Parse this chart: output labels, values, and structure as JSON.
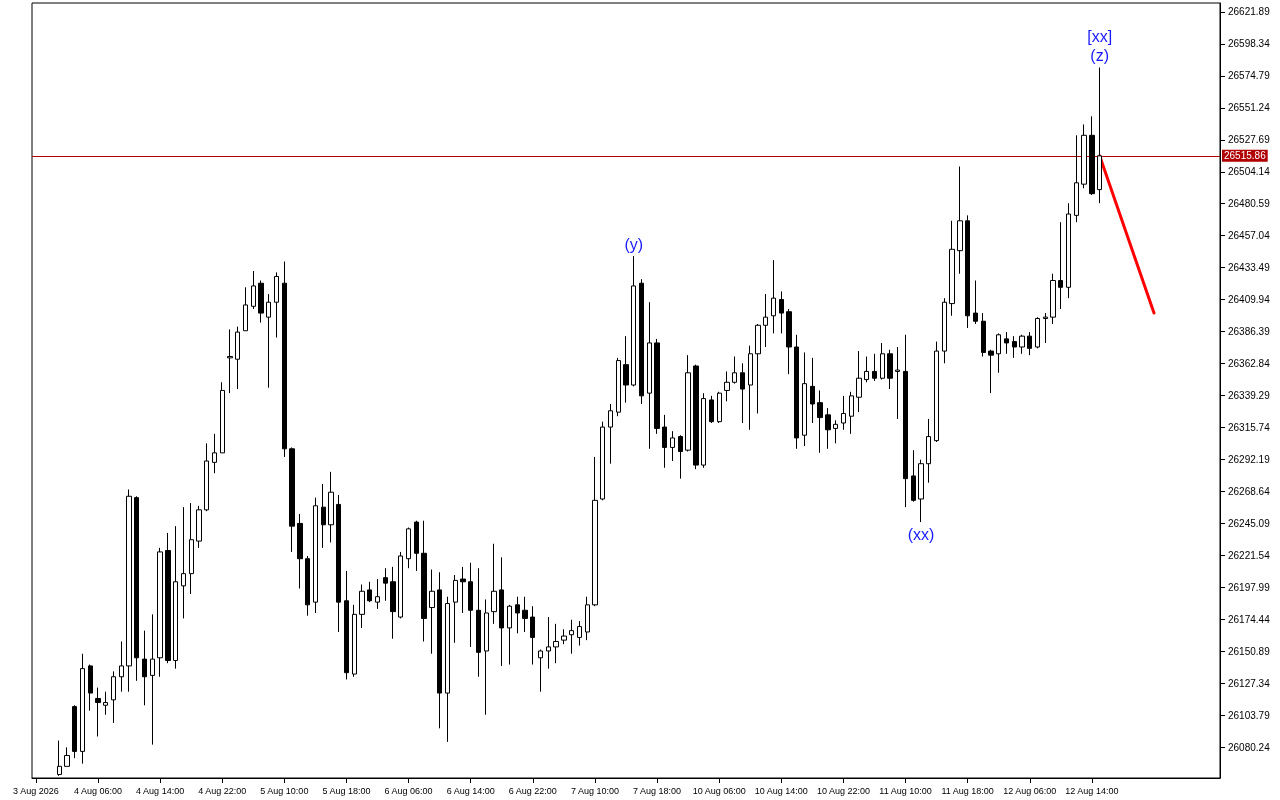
{
  "chart_data": {
    "type": "candlestick",
    "categories": [
      "3 Aug 2026",
      null,
      null,
      null,
      null,
      null,
      null,
      null,
      "4 Aug 06:00",
      null,
      null,
      null,
      null,
      null,
      null,
      null,
      "4 Aug 14:00",
      null,
      null,
      null,
      null,
      null,
      null,
      null,
      "4 Aug 22:00",
      null,
      null,
      null,
      null,
      null,
      null,
      null,
      "5 Aug 10:00",
      null,
      null,
      null,
      null,
      null,
      null,
      null,
      "5 Aug 18:00",
      null,
      null,
      null,
      null,
      null,
      null,
      null,
      "6 Aug 06:00",
      null,
      null,
      null,
      null,
      null,
      null,
      null,
      "6 Aug 14:00",
      null,
      null,
      null,
      null,
      null,
      null,
      null,
      "6 Aug 22:00",
      null,
      null,
      null,
      null,
      null,
      null,
      null,
      "7 Aug 10:00",
      null,
      null,
      null,
      null,
      null,
      null,
      null,
      "7 Aug 18:00",
      null,
      null,
      null,
      null,
      null,
      null,
      null,
      "10 Aug 06:00",
      null,
      null,
      null,
      null,
      null,
      null,
      null,
      "10 Aug 14:00",
      null,
      null,
      null,
      null,
      null,
      null,
      null,
      "10 Aug 22:00",
      null,
      null,
      null,
      null,
      null,
      null,
      null,
      "11 Aug 10:00",
      null,
      null,
      null,
      null,
      null,
      null,
      null,
      "11 Aug 18:00",
      null,
      null,
      null,
      null,
      null,
      null,
      null,
      "12 Aug 06:00",
      null,
      null,
      null,
      null,
      null,
      null,
      null,
      "12 Aug 14:00",
      null,
      null,
      null,
      null,
      null,
      null,
      null,
      null,
      null,
      null,
      null,
      null,
      null,
      null,
      null,
      null
    ],
    "series": [
      {
        "color": "#000000",
        "ohlc": [
          null,
          null,
          null,
          [
            26060,
            26085,
            26059,
            26066
          ],
          [
            26066,
            26080,
            26066,
            26074
          ],
          [
            26110,
            26111,
            26072,
            26077
          ],
          [
            26077,
            26149,
            26068,
            26138
          ],
          [
            26140,
            26141,
            26107,
            26120
          ],
          [
            26116,
            26124,
            26088,
            26113
          ],
          [
            26111,
            26121,
            26104,
            26113
          ],
          [
            26115,
            26136,
            26098,
            26132
          ],
          [
            26132,
            26158,
            26121,
            26140
          ],
          [
            26140,
            26270,
            26121,
            26265
          ],
          [
            26264,
            26265,
            26129,
            26146
          ],
          [
            26145,
            26166,
            26111,
            26132
          ],
          [
            26133,
            26178,
            26082,
            26145
          ],
          [
            26146,
            26227,
            26132,
            26224
          ],
          [
            26225,
            26238,
            26142,
            26144
          ],
          [
            26144,
            26243,
            26138,
            26202
          ],
          [
            26199,
            26257,
            26175,
            26208
          ],
          [
            26208,
            26260,
            26193,
            26233
          ],
          [
            26232,
            26258,
            26227,
            26255
          ],
          [
            26255,
            26304,
            26254,
            26291
          ],
          [
            26290,
            26311,
            26282,
            26297
          ],
          [
            26297,
            26349,
            26297,
            26343
          ],
          [
            26367,
            26388,
            26341,
            26368
          ],
          [
            26366,
            26390,
            26344,
            26386
          ],
          [
            26387,
            26419,
            26387,
            26406
          ],
          [
            26405,
            26431,
            26403,
            26420
          ],
          [
            26422,
            26424,
            26393,
            26400
          ],
          [
            26397,
            26414,
            26345,
            26408
          ],
          [
            26408,
            26430,
            26382,
            26427
          ],
          [
            26422,
            26438,
            26294,
            26300
          ],
          [
            26300,
            26301,
            26224,
            26243
          ],
          [
            26245,
            26252,
            26197,
            26219
          ],
          [
            26219,
            26221,
            26177,
            26185
          ],
          [
            26187,
            26264,
            26179,
            26258
          ],
          [
            26257,
            26274,
            26227,
            26244
          ],
          [
            26244,
            26283,
            26231,
            26268
          ],
          [
            26259,
            26266,
            26165,
            26187
          ],
          [
            26188,
            26210,
            26130,
            26135
          ],
          [
            26134,
            26185,
            26132,
            26178
          ],
          [
            26178,
            26200,
            26168,
            26195
          ],
          [
            26196,
            26202,
            26187,
            26188
          ],
          [
            26187,
            26204,
            26182,
            26191
          ],
          [
            26205,
            26212,
            26188,
            26201
          ],
          [
            26202,
            26213,
            26160,
            26180
          ],
          [
            26176,
            26224,
            26175,
            26221
          ],
          [
            26219,
            26242,
            26212,
            26241
          ],
          [
            26246,
            26247,
            26210,
            26223
          ],
          [
            26223,
            26247,
            26158,
            26175
          ],
          [
            26183,
            26211,
            26149,
            26195
          ],
          [
            26196,
            26209,
            26094,
            26120
          ],
          [
            26120,
            26191,
            26084,
            26186
          ],
          [
            26187,
            26207,
            26157,
            26203
          ],
          [
            26204,
            26213,
            26179,
            26202
          ],
          [
            26202,
            26216,
            26154,
            26181
          ],
          [
            26181,
            26212,
            26132,
            26150
          ],
          [
            26151,
            26189,
            26104,
            26179
          ],
          [
            26180,
            26230,
            26171,
            26195
          ],
          [
            26196,
            26220,
            26140,
            26168
          ],
          [
            26168,
            26185,
            26141,
            26184
          ],
          [
            26185,
            26191,
            26164,
            26179
          ],
          [
            26181,
            26191,
            26165,
            26175
          ],
          [
            26176,
            26184,
            26141,
            26161
          ],
          [
            26146,
            26152,
            26121,
            26151
          ],
          [
            26151,
            26176,
            26138,
            26154
          ],
          [
            26154,
            26171,
            26142,
            26158
          ],
          [
            26159,
            26167,
            26156,
            26162
          ],
          [
            26163,
            26174,
            26149,
            26166
          ],
          [
            26161,
            26173,
            26155,
            26169
          ],
          [
            26165,
            26191,
            26159,
            26185
          ],
          [
            26185,
            26294,
            26184,
            26262
          ],
          [
            26263,
            26320,
            26262,
            26316
          ],
          [
            26316,
            26333,
            26289,
            26328
          ],
          [
            26327,
            26367,
            26324,
            26365
          ],
          [
            26362,
            26383,
            26334,
            26347
          ],
          [
            26347,
            26442,
            26346,
            26420
          ],
          [
            26422,
            26425,
            26333,
            26339
          ],
          [
            26341,
            26408,
            26300,
            26378
          ],
          [
            26378,
            26381,
            26311,
            26315
          ],
          [
            26316,
            26325,
            26286,
            26301
          ],
          [
            26301,
            26313,
            26291,
            26308
          ],
          [
            26309,
            26310,
            26278,
            26298
          ],
          [
            26299,
            26369,
            26298,
            26356
          ],
          [
            26361,
            26362,
            26285,
            26288
          ],
          [
            26288,
            26341,
            26286,
            26337
          ],
          [
            26336,
            26339,
            26319,
            26320
          ],
          [
            26320,
            26342,
            26319,
            26341
          ],
          [
            26343,
            26357,
            26335,
            26349
          ],
          [
            26349,
            26368,
            26348,
            26356
          ],
          [
            26356,
            26363,
            26319,
            26344
          ],
          [
            26347,
            26376,
            26314,
            26370
          ],
          [
            26370,
            26392,
            26326,
            26391
          ],
          [
            26391,
            26414,
            26375,
            26397
          ],
          [
            26398,
            26439,
            26385,
            26411
          ],
          [
            26410,
            26416,
            26385,
            26400
          ],
          [
            26401,
            26403,
            26355,
            26375
          ],
          [
            26375,
            26384,
            26300,
            26308
          ],
          [
            26310,
            26371,
            26302,
            26348
          ],
          [
            26346,
            26367,
            26319,
            26333
          ],
          [
            26334,
            26343,
            26297,
            26323
          ],
          [
            26325,
            26330,
            26300,
            26314
          ],
          [
            26315,
            26321,
            26304,
            26318
          ],
          [
            26319,
            26339,
            26314,
            26326
          ],
          [
            26324,
            26342,
            26311,
            26339
          ],
          [
            26338,
            26372,
            26327,
            26352
          ],
          [
            26351,
            26368,
            26349,
            26357
          ],
          [
            26357,
            26370,
            26350,
            26352
          ],
          [
            26352,
            26378,
            26351,
            26370
          ],
          [
            26370,
            26373,
            26344,
            26352
          ],
          [
            26357,
            26375,
            26322,
            26358
          ],
          [
            26357,
            26384,
            26257,
            26278
          ],
          [
            26280,
            26299,
            26261,
            26262
          ],
          [
            26263,
            26292,
            26246,
            26289
          ],
          [
            26289,
            26322,
            26275,
            26309
          ],
          [
            26306,
            26379,
            26305,
            26372
          ],
          [
            26372,
            26411,
            26363,
            26408
          ],
          [
            26407,
            26468,
            26398,
            26447
          ],
          [
            26446,
            26508,
            26429,
            26468
          ],
          [
            26468,
            26472,
            26389,
            26398
          ],
          [
            26400,
            26424,
            26392,
            26394
          ],
          [
            26394,
            26400,
            26368,
            26371
          ],
          [
            26372,
            26373,
            26341,
            26369
          ],
          [
            26370,
            26385,
            26356,
            26384
          ],
          [
            26381,
            26386,
            26370,
            26378
          ],
          [
            26379,
            26383,
            26367,
            26375
          ],
          [
            26375,
            26384,
            26370,
            26383
          ],
          [
            26383,
            26386,
            26369,
            26374
          ],
          [
            26375,
            26397,
            26374,
            26396
          ],
          [
            26396,
            26400,
            26378,
            26397
          ],
          [
            26397,
            26429,
            26392,
            26424
          ],
          [
            26424,
            26467,
            26403,
            26419
          ],
          [
            26419,
            26481,
            26411,
            26473
          ],
          [
            26472,
            26531,
            26467,
            26496
          ],
          [
            26495,
            26539,
            26492,
            26531
          ],
          [
            26531,
            26545,
            26487,
            26488
          ],
          [
            26491,
            26581,
            26481,
            26515.86
          ],
          null,
          null,
          null,
          null,
          null,
          null,
          null,
          null,
          null,
          null,
          null,
          null,
          null,
          null,
          null
        ]
      },
      {
        "type": "line",
        "color": "#ff0000",
        "values": [
          null,
          null,
          null,
          null,
          null,
          null,
          null,
          null,
          null,
          null,
          null,
          null,
          null,
          null,
          null,
          null,
          null,
          null,
          null,
          null,
          null,
          null,
          null,
          null,
          null,
          null,
          null,
          null,
          null,
          null,
          null,
          null,
          null,
          null,
          null,
          null,
          null,
          null,
          null,
          null,
          null,
          null,
          null,
          null,
          null,
          null,
          null,
          null,
          null,
          null,
          null,
          null,
          null,
          null,
          null,
          null,
          null,
          null,
          null,
          null,
          null,
          null,
          null,
          null,
          null,
          null,
          null,
          null,
          null,
          null,
          null,
          null,
          null,
          null,
          null,
          null,
          null,
          null,
          null,
          null,
          null,
          null,
          null,
          null,
          null,
          null,
          null,
          null,
          null,
          null,
          null,
          null,
          null,
          null,
          null,
          null,
          null,
          null,
          null,
          null,
          null,
          null,
          null,
          null,
          null,
          null,
          null,
          null,
          null,
          null,
          null,
          null,
          null,
          null,
          null,
          null,
          null,
          null,
          null,
          null,
          null,
          null,
          null,
          null,
          null,
          null,
          null,
          null,
          null,
          null,
          null,
          null,
          null,
          null,
          null,
          null,
          null,
          26515.86,
          null,
          null,
          null,
          null,
          null,
          null,
          26400,
          null,
          null,
          null,
          null,
          null,
          null,
          null,
          null
        ]
      }
    ],
    "ylim": [
      26057.4,
      26628.5
    ],
    "yticks": [
      26080.24,
      26103.79,
      26127.34,
      26150.89,
      26174.44,
      26197.99,
      26221.54,
      26245.09,
      26268.64,
      26292.19,
      26315.74,
      26339.29,
      26362.84,
      26386.39,
      26409.94,
      26433.49,
      26457.04,
      26480.59,
      26504.14,
      26527.69,
      26551.24,
      26574.79,
      26598.34,
      26621.89
    ],
    "ref_lines": [
      {
        "axis": "y",
        "value": 26515.86,
        "label": "26515.86",
        "color": "#b00000"
      }
    ],
    "annotations": [
      {
        "text": "(y)",
        "y": 26442
      },
      {
        "text": "(xx)",
        "y": 26246
      },
      {
        "text": "[xx]",
        "y": 26581
      },
      {
        "text": "(z)",
        "y": 26581
      }
    ]
  }
}
